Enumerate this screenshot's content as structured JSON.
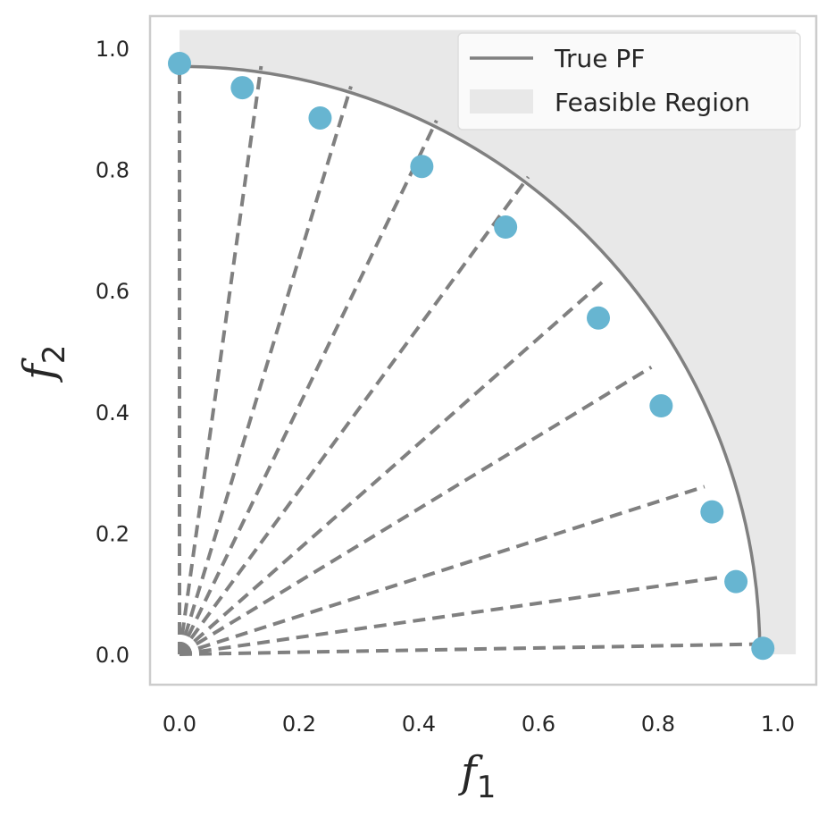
{
  "chart_data": {
    "type": "scatter",
    "title": "",
    "xlabel": {
      "main": "f",
      "sub": "1"
    },
    "ylabel": {
      "main": "f",
      "sub": "2"
    },
    "xlim": [
      -0.05,
      1.05
    ],
    "ylim": [
      -0.05,
      1.05
    ],
    "xticks": [
      "0.0",
      "0.2",
      "0.4",
      "0.6",
      "0.8",
      "1.0"
    ],
    "yticks": [
      "0.0",
      "0.2",
      "0.4",
      "0.6",
      "0.8",
      "1.0"
    ],
    "grid": false,
    "legend": {
      "placement": "top-right",
      "entries": [
        "True PF",
        "Feasible Region"
      ]
    },
    "colors": {
      "pf_line": "#808080",
      "feasible_fill": "#e8e8e8",
      "points": "#67b5d1",
      "rays": "#808080",
      "frame": "#cccccc"
    },
    "true_pf": {
      "shape": "quarter-circle",
      "radius": 0.97,
      "name": "True PF"
    },
    "feasible_region": {
      "name": "Feasible Region",
      "x_max": 1.03,
      "y_max": 1.03
    },
    "rays": [
      {
        "angle_deg": 90,
        "length": 0.97
      },
      {
        "angle_deg": 82,
        "length": 0.98
      },
      {
        "angle_deg": 73,
        "length": 0.98
      },
      {
        "angle_deg": 64,
        "length": 0.98
      },
      {
        "angle_deg": 53.5,
        "length": 0.98
      },
      {
        "angle_deg": 41,
        "length": 0.94
      },
      {
        "angle_deg": 31,
        "length": 0.92
      },
      {
        "angle_deg": 17.5,
        "length": 0.92
      },
      {
        "angle_deg": 8,
        "length": 0.91
      },
      {
        "angle_deg": 1,
        "length": 0.96
      }
    ],
    "points": [
      {
        "x": 0.0,
        "y": 0.975
      },
      {
        "x": 0.105,
        "y": 0.935
      },
      {
        "x": 0.235,
        "y": 0.885
      },
      {
        "x": 0.405,
        "y": 0.805
      },
      {
        "x": 0.545,
        "y": 0.705
      },
      {
        "x": 0.7,
        "y": 0.555
      },
      {
        "x": 0.805,
        "y": 0.41
      },
      {
        "x": 0.89,
        "y": 0.235
      },
      {
        "x": 0.93,
        "y": 0.12
      },
      {
        "x": 0.975,
        "y": 0.01
      }
    ]
  }
}
